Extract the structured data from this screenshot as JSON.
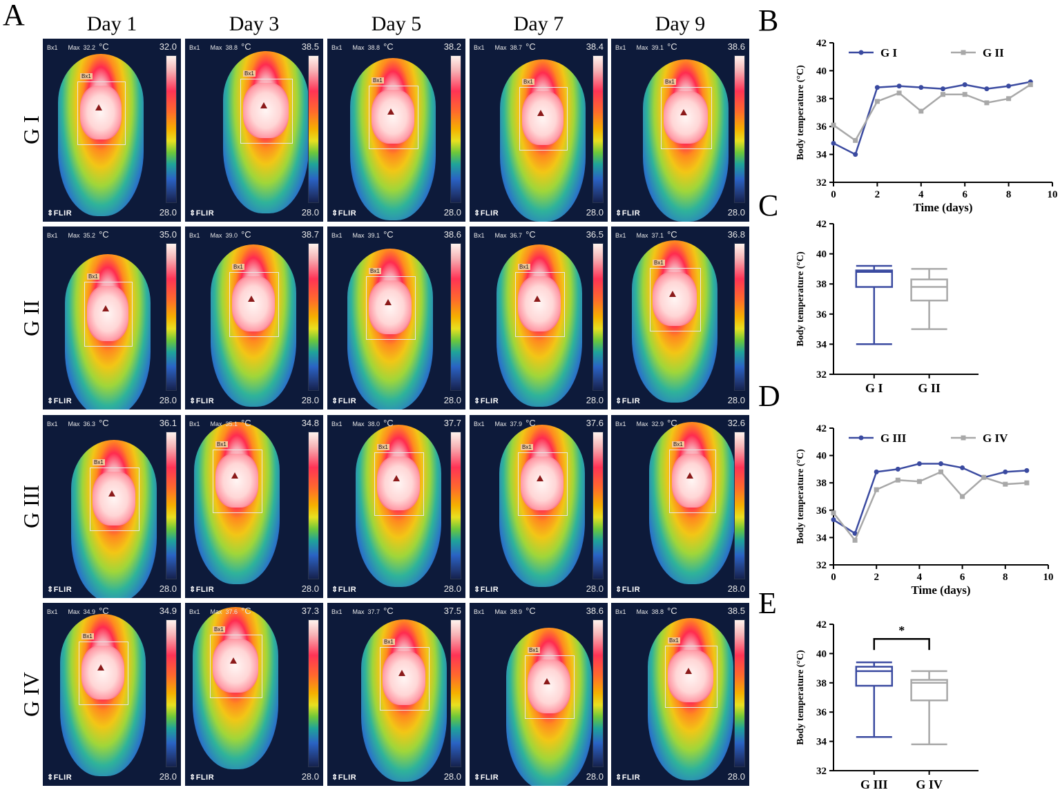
{
  "panels": {
    "A": "A",
    "B": "B",
    "C": "C",
    "D": "D",
    "E": "E"
  },
  "days": [
    "Day 1",
    "Day 3",
    "Day 5",
    "Day 7",
    "Day 9"
  ],
  "groups": [
    "G I",
    "G II",
    "G III",
    "G IV"
  ],
  "thermal": {
    "label": "Bx1",
    "max_label": "Max",
    "unit": "°C",
    "logo": "FLIR",
    "min_scale": "28.0",
    "rows": [
      {
        "max": [
          "32.2",
          "38.8",
          "38.8",
          "38.7",
          "39.1"
        ],
        "scale": [
          "32.0",
          "38.5",
          "38.2",
          "38.4",
          "38.6"
        ]
      },
      {
        "max": [
          "35.2",
          "39.0",
          "39.1",
          "36.7",
          "37.1"
        ],
        "scale": [
          "35.0",
          "38.7",
          "38.6",
          "36.5",
          "36.8"
        ]
      },
      {
        "max": [
          "36.3",
          "35.1",
          "38.0",
          "37.9",
          "32.9"
        ],
        "scale": [
          "36.1",
          "34.8",
          "37.7",
          "37.6",
          "32.6"
        ]
      },
      {
        "max": [
          "34.9",
          "37.6",
          "37.7",
          "38.9",
          "38.8"
        ],
        "scale": [
          "34.9",
          "37.3",
          "37.5",
          "38.6",
          "38.5"
        ]
      }
    ]
  },
  "colors": {
    "blue": "#3a4aa0",
    "gray": "#a8a8a8"
  },
  "chart_data": [
    {
      "panel": "B",
      "type": "line",
      "xlabel": "Time (days)",
      "ylabel": "Body temperature (°C)",
      "xlim": [
        0,
        10
      ],
      "ylim": [
        32,
        42
      ],
      "xticks": [
        0,
        2,
        4,
        6,
        8,
        10
      ],
      "yticks": [
        32,
        34,
        36,
        38,
        40,
        42
      ],
      "x": [
        0,
        1,
        2,
        3,
        4,
        5,
        6,
        7,
        8,
        9
      ],
      "series": [
        {
          "name": "G I",
          "values": [
            34.8,
            34.0,
            38.8,
            38.9,
            38.8,
            38.7,
            39.0,
            38.7,
            38.9,
            39.2
          ]
        },
        {
          "name": "G II",
          "values": [
            36.1,
            35.0,
            37.8,
            38.4,
            37.1,
            38.3,
            38.3,
            37.7,
            38.0,
            39.0
          ]
        }
      ]
    },
    {
      "panel": "C",
      "type": "box",
      "ylabel": "Body temperature (°C)",
      "ylim": [
        32,
        42
      ],
      "yticks": [
        32,
        34,
        36,
        38,
        40,
        42
      ],
      "categories": [
        "G I",
        "G II"
      ],
      "boxes": [
        {
          "min": 34.0,
          "q1": 37.8,
          "median": 38.8,
          "q3": 38.9,
          "max": 39.2
        },
        {
          "min": 35.0,
          "q1": 36.9,
          "median": 37.8,
          "q3": 38.3,
          "max": 39.0
        }
      ]
    },
    {
      "panel": "D",
      "type": "line",
      "xlabel": "Time (days)",
      "ylabel": "Body temperature (°C)",
      "xlim": [
        0,
        10
      ],
      "ylim": [
        32,
        42
      ],
      "xticks": [
        0,
        2,
        4,
        6,
        8,
        10
      ],
      "yticks": [
        32,
        34,
        36,
        38,
        40,
        42
      ],
      "x": [
        0,
        1,
        2,
        3,
        4,
        5,
        6,
        7,
        8,
        9
      ],
      "series": [
        {
          "name": "G III",
          "values": [
            35.3,
            34.3,
            38.8,
            39.0,
            39.4,
            39.4,
            39.1,
            38.4,
            38.8,
            38.9
          ]
        },
        {
          "name": "G IV",
          "values": [
            35.8,
            33.8,
            37.5,
            38.2,
            38.1,
            38.8,
            37.0,
            38.4,
            37.9,
            38.0
          ]
        }
      ]
    },
    {
      "panel": "E",
      "type": "box",
      "ylabel": "Body temperature (°C)",
      "ylim": [
        32,
        42
      ],
      "yticks": [
        32,
        34,
        36,
        38,
        40,
        42
      ],
      "categories": [
        "G III",
        "G IV"
      ],
      "significance": "*",
      "boxes": [
        {
          "min": 34.3,
          "q1": 37.8,
          "median": 38.8,
          "q3": 39.1,
          "max": 39.4
        },
        {
          "min": 33.8,
          "q1": 36.8,
          "median": 38.0,
          "q3": 38.2,
          "max": 38.8
        }
      ]
    }
  ]
}
